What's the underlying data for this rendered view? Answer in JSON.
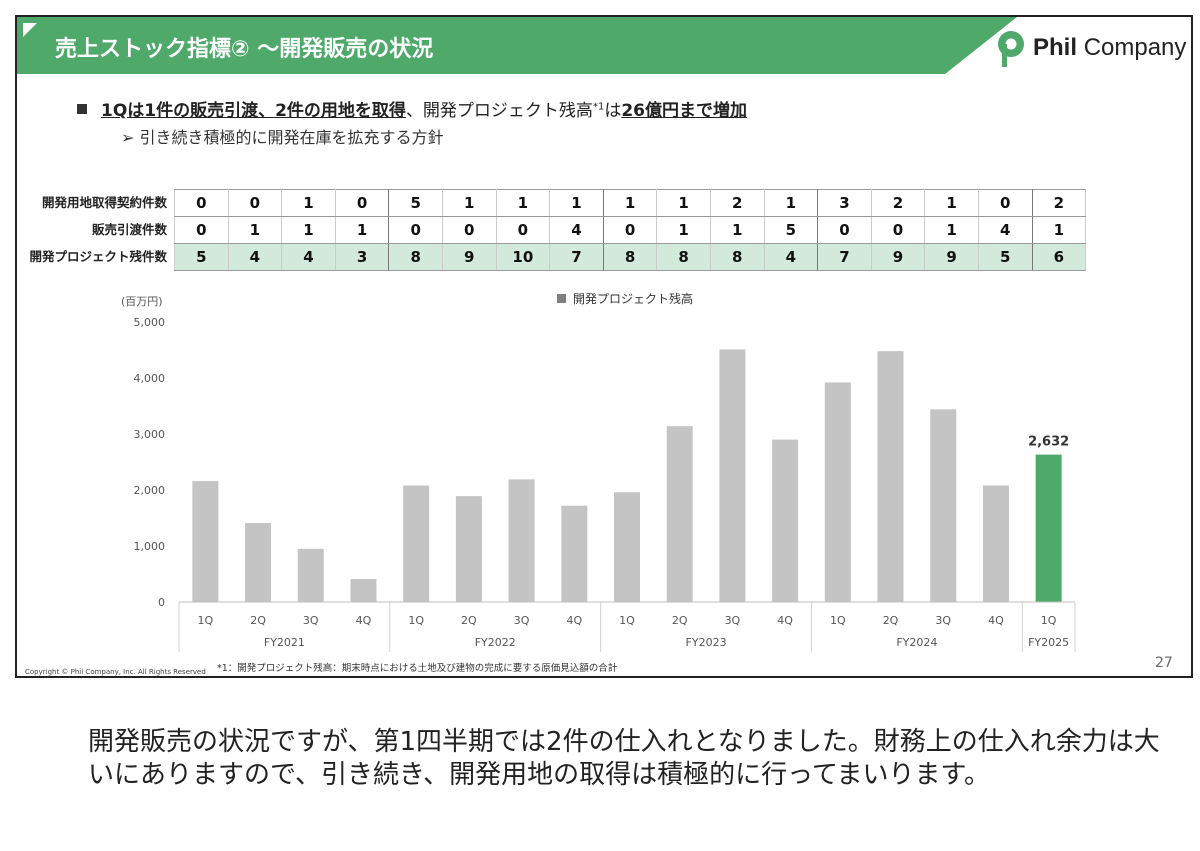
{
  "slide": {
    "title": "売上ストック指標② ～開発販売の状況",
    "logo_text": "Phil",
    "logo_text2": "Company",
    "lead_part1": "1Qは1件の販売引渡、2件の用地を取得",
    "lead_part2": "、開発プロジェクト残高",
    "lead_sup": "*1",
    "lead_part3": "は",
    "lead_part4": "26億円まで増加",
    "sub_bullet": "➢ 引き続き積極的に開発在庫を拡充する方針",
    "footnote": "*1：開発プロジェクト残高：期末時点における土地及び建物の完成に要する原価見込額の合計",
    "copyright": "Copyright © Phil Company, Inc.  All Rights Reserved",
    "page_number": "27",
    "brand_color": "#4ea96a"
  },
  "counts_table": {
    "rows": [
      {
        "label": "開発用地取得契約件数",
        "values": [
          "0",
          "0",
          "1",
          "0",
          "5",
          "1",
          "1",
          "1",
          "1",
          "1",
          "2",
          "1",
          "3",
          "2",
          "1",
          "0",
          "2"
        ]
      },
      {
        "label": "販売引渡件数",
        "values": [
          "0",
          "1",
          "1",
          "1",
          "0",
          "0",
          "0",
          "4",
          "0",
          "1",
          "1",
          "5",
          "0",
          "0",
          "1",
          "4",
          "1"
        ]
      },
      {
        "label": "開発プロジェクト残件数",
        "values": [
          "5",
          "4",
          "4",
          "3",
          "8",
          "9",
          "10",
          "7",
          "8",
          "8",
          "8",
          "4",
          "7",
          "9",
          "9",
          "5",
          "6"
        ]
      }
    ]
  },
  "chart_data": {
    "type": "bar",
    "unit_label": "(百万円)",
    "legend": "開発プロジェクト残高",
    "categories": [
      "1Q",
      "2Q",
      "3Q",
      "4Q",
      "1Q",
      "2Q",
      "3Q",
      "4Q",
      "1Q",
      "2Q",
      "3Q",
      "4Q",
      "1Q",
      "2Q",
      "3Q",
      "4Q",
      "1Q"
    ],
    "groups": [
      {
        "label": "FY2021",
        "count": 4
      },
      {
        "label": "FY2022",
        "count": 4
      },
      {
        "label": "FY2023",
        "count": 4
      },
      {
        "label": "FY2024",
        "count": 4
      },
      {
        "label": "FY2025",
        "count": 1
      }
    ],
    "values": [
      2160,
      1410,
      950,
      410,
      2080,
      1890,
      2190,
      1720,
      1960,
      3140,
      4510,
      2900,
      3920,
      4480,
      3440,
      2080,
      2632
    ],
    "highlight_index": 16,
    "highlight_label": "2,632",
    "ylim": [
      0,
      5000
    ],
    "yticks": [
      "0",
      "1,000",
      "2,000",
      "3,000",
      "4,000",
      "5,000"
    ],
    "grid": false,
    "legend_position": "top-center",
    "bar_color": "#c4c4c4",
    "highlight_color": "#4ea96a"
  },
  "caption": "開発販売の状況ですが、第1四半期では2件の仕入れとなりました。財務上の仕入れ余力は大いにありますので、引き続き、開発用地の取得は積極的に行ってまいります。"
}
